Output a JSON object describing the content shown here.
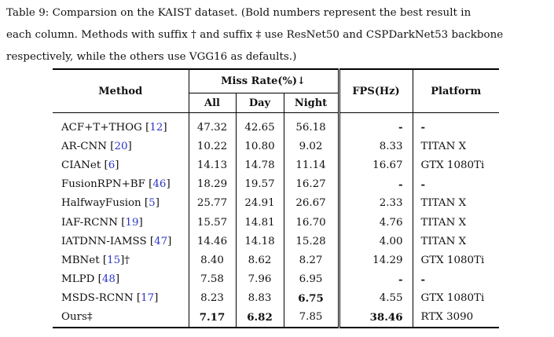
{
  "caption": {
    "line1": "Table 9: Comparsion on the KAIST dataset. (Bold numbers represent the best result in",
    "line2": "each column. Methods with suffix † and suffix ‡ use ResNet50 and CSPDarkNet53 backbone",
    "line3": "respectively, while the others use VGG16 as defaults.)"
  },
  "table": {
    "headers": {
      "method": "Method",
      "miss_rate": "Miss Rate(%)↓",
      "all": "All",
      "day": "Day",
      "night": "Night",
      "fps": "FPS(Hz)",
      "platform": "Platform"
    },
    "rows": [
      {
        "name": "ACF+T+THOG",
        "ref": "12",
        "suffix": "",
        "all": "47.32",
        "day": "42.65",
        "night": "56.18",
        "fps": "-",
        "platform": "-"
      },
      {
        "name": "AR-CNN",
        "ref": "20",
        "suffix": "",
        "all": "10.22",
        "day": "10.80",
        "night": "9.02",
        "fps": "8.33",
        "platform": "TITAN X"
      },
      {
        "name": "CIANet",
        "ref": "6",
        "suffix": "",
        "all": "14.13",
        "day": "14.78",
        "night": "11.14",
        "fps": "16.67",
        "platform": "GTX 1080Ti"
      },
      {
        "name": "FusionRPN+BF",
        "ref": "46",
        "suffix": "",
        "all": "18.29",
        "day": "19.57",
        "night": "16.27",
        "fps": "-",
        "platform": "-"
      },
      {
        "name": "HalfwayFusion",
        "ref": "5",
        "suffix": "",
        "all": "25.77",
        "day": "24.91",
        "night": "26.67",
        "fps": "2.33",
        "platform": "TITAN X"
      },
      {
        "name": "IAF-RCNN",
        "ref": "19",
        "suffix": "",
        "all": "15.57",
        "day": "14.81",
        "night": "16.70",
        "fps": "4.76",
        "platform": "TITAN X"
      },
      {
        "name": "IATDNN-IAMSS",
        "ref": "47",
        "suffix": "",
        "all": "14.46",
        "day": "14.18",
        "night": "15.28",
        "fps": "4.00",
        "platform": "TITAN X"
      },
      {
        "name": "MBNet",
        "ref": "15",
        "suffix": "†",
        "all": "8.40",
        "day": "8.62",
        "night": "8.27",
        "fps": "14.29",
        "platform": "GTX 1080Ti"
      },
      {
        "name": "MLPD",
        "ref": "48",
        "suffix": "",
        "all": "7.58",
        "day": "7.96",
        "night": "6.95",
        "fps": "-",
        "platform": "-"
      },
      {
        "name": "MSDS-RCNN",
        "ref": "17",
        "suffix": "",
        "all": "8.23",
        "day": "8.83",
        "night": "6.75",
        "fps": "4.55",
        "platform": "GTX 1080Ti"
      },
      {
        "name": "Ours‡",
        "ref": "",
        "suffix": "",
        "all": "7.17",
        "day": "6.82",
        "night": "7.85",
        "fps": "38.46",
        "platform": "RTX 3090"
      }
    ],
    "bold": {
      "Ours‡": [
        "all",
        "day",
        "fps"
      ],
      "MSDS-RCNN": [
        "night"
      ],
      "ACF+T+THOG": [
        "fps",
        "platform"
      ],
      "FusionRPN+BF": [
        "fps",
        "platform"
      ],
      "MLPD": [
        "fps",
        "platform"
      ]
    },
    "ref_color": "#2b35c8"
  }
}
